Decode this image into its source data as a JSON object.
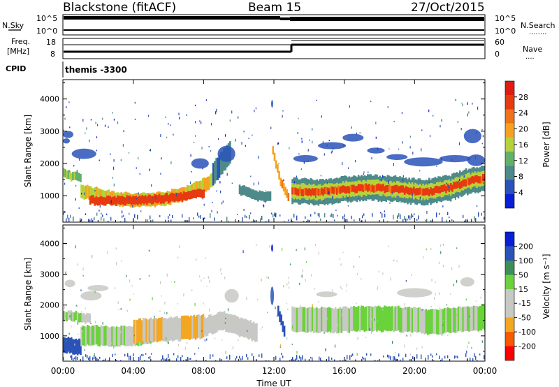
{
  "header": {
    "title_left": "Blackstone (fitACF)",
    "title_center": "Beam 15",
    "title_right": "27/Oct/2015"
  },
  "aux": {
    "nsky_label": "N.Sky",
    "nsearch_label": "N.Search",
    "nsearch_dots": "........",
    "nsky_ticks": [
      "10^5",
      "10^0"
    ],
    "freq_label_1": "Freq.",
    "freq_label_2": "[MHz]",
    "freq_ticks": [
      "18",
      "8"
    ],
    "nave_label": "Nave",
    "nave_dots": "....",
    "nave_ticks": [
      "60",
      "0"
    ],
    "cpid_label": "CPID",
    "cpid_value": "themis -3300"
  },
  "colors": {
    "power": [
      "#0a1ed7",
      "#2a52b8",
      "#4e8a8a",
      "#63b06a",
      "#b6d23a",
      "#f6a221",
      "#f07318",
      "#e83a10",
      "#e01c10"
    ],
    "velocity": [
      "#ff0000",
      "#f75a00",
      "#f4a620",
      "#c8c8c4",
      "#c8c8c4",
      "#6ad23a",
      "#3d8f58",
      "#2a52b8",
      "#0a1ed7"
    ]
  },
  "chart_data": [
    {
      "type": "heatmap",
      "name": "power",
      "ylabel": "Slant Range [km]",
      "ylim": [
        180,
        4600
      ],
      "yticks": [
        "1000",
        "2000",
        "3000",
        "4000"
      ],
      "colorbar_label": "Power [dB]",
      "colorbar_ticks": [
        "4",
        "8",
        "12",
        "16",
        "20",
        "24",
        "28"
      ],
      "colorbar_range": [
        0,
        32
      ],
      "bands": [
        {
          "x": [
            0.0,
            0.5,
            1.0
          ],
          "y": [
            1700,
            1600,
            1550
          ],
          "w": 260,
          "v": 14
        },
        {
          "x": [
            1.0,
            2.5,
            4.0,
            5.5,
            6.5,
            7.5,
            8.5
          ],
          "y": [
            1150,
            950,
            850,
            900,
            1000,
            1200,
            1500
          ],
          "w": 420,
          "v": 18
        },
        {
          "x": [
            1.5,
            3.0,
            4.0,
            5.5,
            7.0,
            8.0
          ],
          "y": [
            850,
            850,
            850,
            900,
            980,
            1100
          ],
          "w": 260,
          "v": 27
        },
        {
          "x": [
            8.5,
            9.0,
            9.5
          ],
          "y": [
            1700,
            2000,
            2400
          ],
          "w": 700,
          "v": 7
        },
        {
          "x": [
            10.0,
            11.0,
            11.8
          ],
          "y": [
            1200,
            1000,
            950
          ],
          "w": 300,
          "v": 9
        },
        {
          "x": [
            11.9,
            12.3,
            12.8
          ],
          "y": [
            2400,
            1500,
            950
          ],
          "w": 260,
          "v": 20
        },
        {
          "x": [
            13.0,
            14.5,
            16.0,
            17.5,
            19.0,
            20.5,
            22.0,
            23.0,
            24.0
          ],
          "y": [
            1150,
            1100,
            1200,
            1250,
            1200,
            1100,
            1250,
            1450,
            1550
          ],
          "w": 780,
          "v": 9
        },
        {
          "x": [
            13.0,
            14.5,
            16.0,
            17.5,
            19.0,
            20.5,
            22.0,
            23.0,
            24.0
          ],
          "y": [
            1150,
            1100,
            1200,
            1250,
            1200,
            1100,
            1250,
            1450,
            1550
          ],
          "w": 460,
          "v": 16
        },
        {
          "x": [
            13.0,
            14.5,
            16.0,
            17.5,
            19.0,
            20.5,
            22.0,
            23.0,
            24.0
          ],
          "y": [
            1150,
            1100,
            1200,
            1250,
            1200,
            1100,
            1250,
            1450,
            1550
          ],
          "w": 220,
          "v": 26
        }
      ],
      "blobs": [
        {
          "x": 0.3,
          "y": 2900,
          "rx": 0.3,
          "ry": 110,
          "v": 5
        },
        {
          "x": 0.2,
          "y": 2700,
          "rx": 0.2,
          "ry": 80,
          "v": 7
        },
        {
          "x": 1.2,
          "y": 2300,
          "rx": 0.7,
          "ry": 160,
          "v": 7
        },
        {
          "x": 7.8,
          "y": 2000,
          "rx": 0.5,
          "ry": 160,
          "v": 6
        },
        {
          "x": 9.3,
          "y": 2300,
          "rx": 0.5,
          "ry": 250,
          "v": 5
        },
        {
          "x": 11.9,
          "y": 3850,
          "rx": 0.05,
          "ry": 120,
          "v": 6
        },
        {
          "x": 13.8,
          "y": 2150,
          "rx": 0.7,
          "ry": 110,
          "v": 5
        },
        {
          "x": 15.3,
          "y": 2550,
          "rx": 0.8,
          "ry": 110,
          "v": 5
        },
        {
          "x": 16.5,
          "y": 2800,
          "rx": 0.6,
          "ry": 120,
          "v": 5
        },
        {
          "x": 17.8,
          "y": 2400,
          "rx": 0.5,
          "ry": 90,
          "v": 5
        },
        {
          "x": 19.0,
          "y": 2200,
          "rx": 0.6,
          "ry": 90,
          "v": 5
        },
        {
          "x": 20.5,
          "y": 2050,
          "rx": 1.1,
          "ry": 140,
          "v": 5
        },
        {
          "x": 22.3,
          "y": 2150,
          "rx": 0.9,
          "ry": 110,
          "v": 5
        },
        {
          "x": 23.3,
          "y": 2850,
          "rx": 0.5,
          "ry": 220,
          "v": 5
        },
        {
          "x": 23.5,
          "y": 2100,
          "rx": 0.5,
          "ry": 180,
          "v": 7
        }
      ],
      "floor": {
        "y0": 200,
        "y1": 500,
        "v": 6
      }
    },
    {
      "type": "heatmap",
      "name": "velocity",
      "xlabel": "Time UT",
      "ylabel": "Slant Range [km]",
      "ylim": [
        180,
        4600
      ],
      "yticks": [
        "1000",
        "2000",
        "3000",
        "4000"
      ],
      "xlim": [
        0,
        24
      ],
      "xticks": [
        "00:00",
        "04:00",
        "08:00",
        "12:00",
        "16:00",
        "20:00",
        "00:00"
      ],
      "colorbar_label": "Velocity [m s⁻¹]",
      "colorbar_ticks": [
        "-200",
        "-100",
        "-50",
        "-15",
        "15",
        "50",
        "100",
        "200"
      ],
      "bands": [
        {
          "x": [
            0.0,
            0.5,
            1.0,
            1.5
          ],
          "y": [
            1650,
            1650,
            1600,
            1550
          ],
          "w": 300,
          "v": 0
        },
        {
          "x": [
            0.0,
            1.0
          ],
          "y": [
            700,
            650
          ],
          "w": 500,
          "v": 60
        },
        {
          "x": [
            1.0,
            2.0,
            3.0,
            4.0,
            5.0
          ],
          "y": [
            1000,
            1000,
            1000,
            1000,
            1050
          ],
          "w": 640,
          "v": 0
        },
        {
          "x": [
            4.0,
            5.0,
            6.0,
            7.0,
            8.0
          ],
          "y": [
            1150,
            1180,
            1200,
            1250,
            1300
          ],
          "w": 760,
          "v": -50
        },
        {
          "x": [
            8.0,
            9.0,
            10.0,
            11.0
          ],
          "y": [
            1300,
            1500,
            1300,
            1100
          ],
          "w": 600,
          "v": -30
        },
        {
          "x": [
            12.2,
            12.6
          ],
          "y": [
            1800,
            1100
          ],
          "w": 350,
          "v": 60
        },
        {
          "x": [
            13.0,
            15.0,
            17.0,
            19.0,
            21.0,
            23.0,
            24.0
          ],
          "y": [
            1550,
            1500,
            1550,
            1550,
            1450,
            1550,
            1600
          ],
          "w": 800,
          "v": 0
        }
      ],
      "blobs": [
        {
          "x": 0.4,
          "y": 2700,
          "rx": 0.3,
          "ry": 120,
          "v": 0
        },
        {
          "x": 1.6,
          "y": 2300,
          "rx": 0.6,
          "ry": 150,
          "v": -10
        },
        {
          "x": 2.0,
          "y": 2550,
          "rx": 0.6,
          "ry": 100,
          "v": 0
        },
        {
          "x": 9.6,
          "y": 2300,
          "rx": 0.4,
          "ry": 220,
          "v": 0
        },
        {
          "x": 11.9,
          "y": 3850,
          "rx": 0.05,
          "ry": 120,
          "v": 200
        },
        {
          "x": 11.9,
          "y": 2300,
          "rx": 0.1,
          "ry": 300,
          "v": 60
        },
        {
          "x": 15.0,
          "y": 2350,
          "rx": 0.6,
          "ry": 90,
          "v": 0
        },
        {
          "x": 20.0,
          "y": 2400,
          "rx": 1.0,
          "ry": 150,
          "v": 0
        },
        {
          "x": 23.0,
          "y": 2750,
          "rx": 0.4,
          "ry": 150,
          "v": 0
        }
      ],
      "floor": {
        "y0": 200,
        "y1": 450,
        "v": 60
      }
    }
  ]
}
